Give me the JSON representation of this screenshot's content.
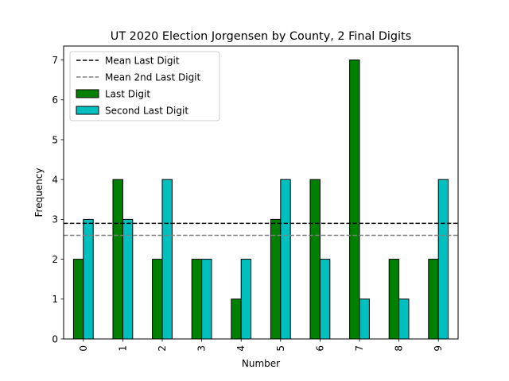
{
  "chart_data": {
    "type": "bar",
    "title": "UT 2020 Election Jorgensen by County, 2 Final Digits",
    "xlabel": "Number",
    "ylabel": "Frequency",
    "categories": [
      "0",
      "1",
      "2",
      "3",
      "4",
      "5",
      "6",
      "7",
      "8",
      "9"
    ],
    "series": [
      {
        "name": "Last Digit",
        "color": "#008000",
        "values": [
          2,
          4,
          2,
          2,
          1,
          3,
          4,
          7,
          2,
          2
        ]
      },
      {
        "name": "Second Last Digit",
        "color": "#00bfbf",
        "values": [
          3,
          3,
          4,
          2,
          2,
          4,
          2,
          1,
          1,
          4
        ]
      }
    ],
    "reference_lines": [
      {
        "name": "Mean Last Digit",
        "value": 2.9,
        "color": "#000000",
        "style": "dashed"
      },
      {
        "name": "Mean 2nd Last Digit",
        "value": 2.6,
        "color": "#808080",
        "style": "dashed"
      }
    ],
    "ylim": [
      0,
      7.35
    ],
    "yticks": [
      0,
      1,
      2,
      3,
      4,
      5,
      6,
      7
    ],
    "grid": false,
    "legend_position": "top-left"
  }
}
